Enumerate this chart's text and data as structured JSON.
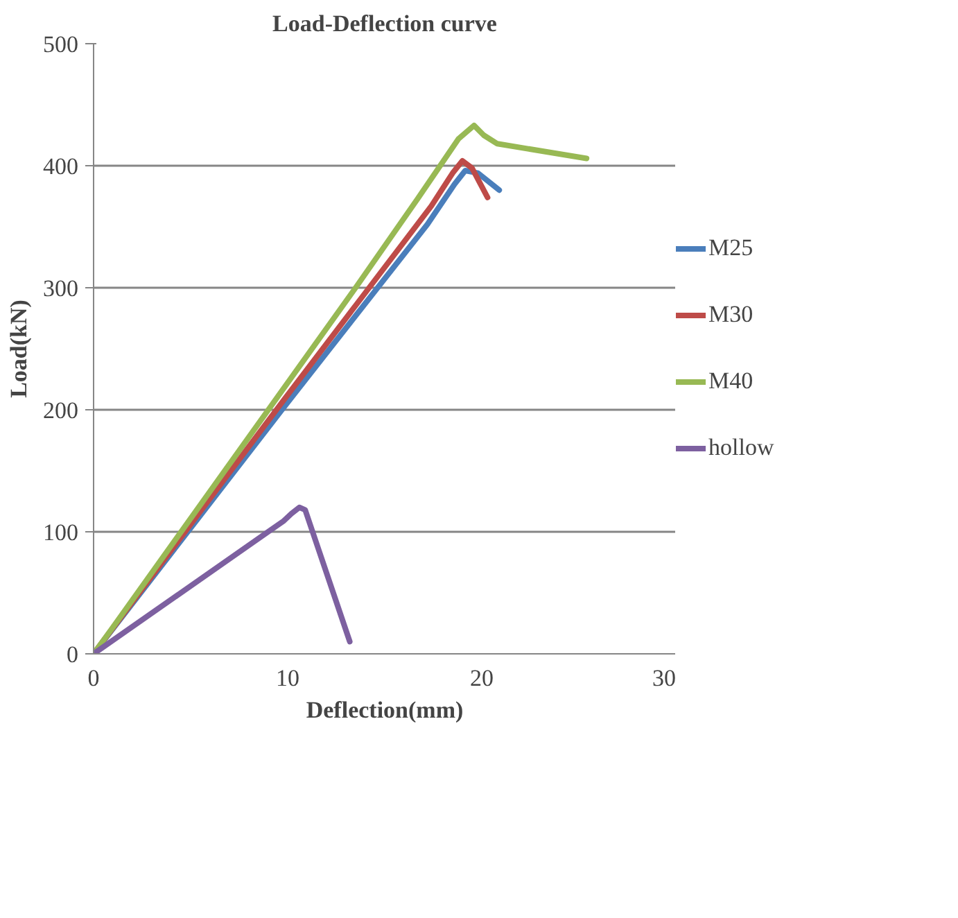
{
  "chart_data": {
    "type": "line",
    "title": "Load-Deflection curve",
    "xlabel": "Deflection(mm)",
    "ylabel": "Load(kN)",
    "xlim": [
      0,
      30
    ],
    "xticks": [
      0,
      10,
      20,
      30
    ],
    "ylim": [
      0,
      500
    ],
    "yticks": [
      0,
      100,
      200,
      300,
      400,
      500
    ],
    "grid": "y",
    "legend": "right",
    "marker": "none",
    "line_style": "solid",
    "series": [
      {
        "name": "M25",
        "color": "#4a7ebb",
        "x": [
          0,
          9.8,
          17.2,
          18.6,
          19.15,
          19.8,
          20.9
        ],
        "values": [
          0,
          202,
          352,
          385,
          396,
          394,
          380
        ]
      },
      {
        "name": "M30",
        "color": "#be4b48",
        "x": [
          0,
          9.8,
          17.4,
          18.5,
          19.0,
          19.5,
          20.3
        ],
        "values": [
          0,
          208,
          367,
          394,
          404,
          398,
          374
        ]
      },
      {
        "name": "M40",
        "color": "#98b954",
        "x": [
          0,
          0.87,
          13.5,
          16.7,
          18.8,
          19.6,
          20.1,
          20.8,
          25.4
        ],
        "values": [
          0,
          19,
          300,
          373,
          422,
          433,
          425,
          418,
          406
        ]
      },
      {
        "name": "hollow",
        "color": "#7d60a0",
        "x": [
          0,
          9.8,
          10.2,
          10.6,
          10.9,
          13.2
        ],
        "values": [
          0,
          109,
          115,
          120,
          118,
          10
        ]
      }
    ]
  }
}
